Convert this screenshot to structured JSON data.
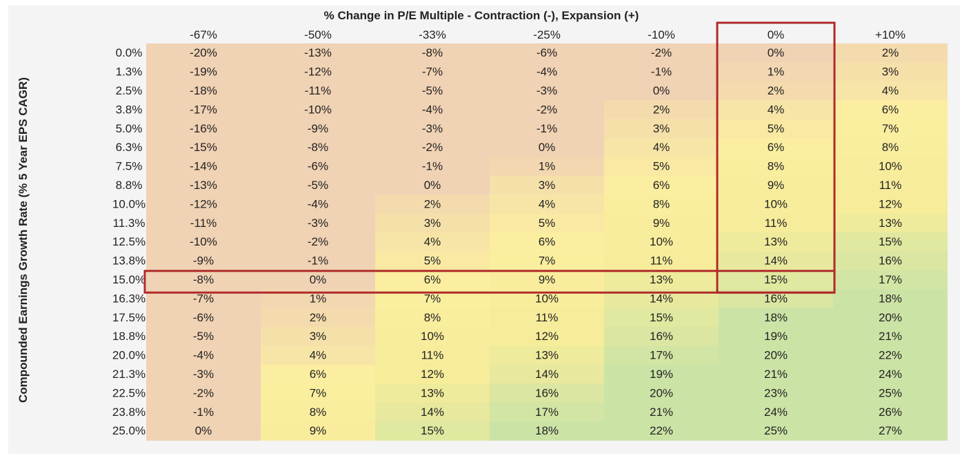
{
  "chart_data": {
    "type": "heatmap",
    "title": "% Change in P/E Multiple - Contraction (-), Expansion (+)",
    "ylabel": "Compounded Earnings Growth Rate (% 5 Year EPS CAGR)",
    "columns": [
      "-67%",
      "-50%",
      "-33%",
      "-25%",
      "-10%",
      "0%",
      "+10%"
    ],
    "rows": [
      "0.0%",
      "1.3%",
      "2.5%",
      "3.8%",
      "5.0%",
      "6.3%",
      "7.5%",
      "8.8%",
      "10.0%",
      "11.3%",
      "12.5%",
      "13.8%",
      "15.0%",
      "16.3%",
      "17.5%",
      "18.8%",
      "20.0%",
      "21.3%",
      "22.5%",
      "23.8%",
      "25.0%"
    ],
    "values": [
      [
        -20,
        -13,
        -8,
        -6,
        -2,
        0,
        2
      ],
      [
        -19,
        -12,
        -7,
        -4,
        -1,
        1,
        3
      ],
      [
        -18,
        -11,
        -5,
        -3,
        0,
        2,
        4
      ],
      [
        -17,
        -10,
        -4,
        -2,
        2,
        4,
        6
      ],
      [
        -16,
        -9,
        -3,
        -1,
        3,
        5,
        7
      ],
      [
        -15,
        -8,
        -2,
        0,
        4,
        6,
        8
      ],
      [
        -14,
        -6,
        -1,
        1,
        5,
        8,
        10
      ],
      [
        -13,
        -5,
        0,
        3,
        6,
        9,
        11
      ],
      [
        -12,
        -4,
        2,
        4,
        8,
        10,
        12
      ],
      [
        -11,
        -3,
        3,
        5,
        9,
        11,
        13
      ],
      [
        -10,
        -2,
        4,
        6,
        10,
        13,
        15
      ],
      [
        -9,
        -1,
        5,
        7,
        11,
        14,
        16
      ],
      [
        -8,
        0,
        6,
        9,
        13,
        15,
        17
      ],
      [
        -7,
        1,
        7,
        10,
        14,
        16,
        18
      ],
      [
        -6,
        2,
        8,
        11,
        15,
        18,
        20
      ],
      [
        -5,
        3,
        10,
        12,
        16,
        19,
        21
      ],
      [
        -4,
        4,
        11,
        13,
        17,
        20,
        22
      ],
      [
        -3,
        6,
        12,
        14,
        19,
        21,
        24
      ],
      [
        -2,
        7,
        13,
        16,
        20,
        23,
        25
      ],
      [
        -1,
        8,
        14,
        17,
        21,
        24,
        26
      ],
      [
        0,
        9,
        15,
        18,
        22,
        25,
        27
      ]
    ],
    "value_suffix": "%",
    "highlight": {
      "row": "15.0%",
      "column": "0%",
      "color": "#b02a2a"
    },
    "colors": {
      "negative": "#f0d2b4",
      "low": "#fbeea0",
      "mid": "#f6ec9a",
      "high": "#cce3a6"
    },
    "grid": false,
    "legend": "none"
  }
}
